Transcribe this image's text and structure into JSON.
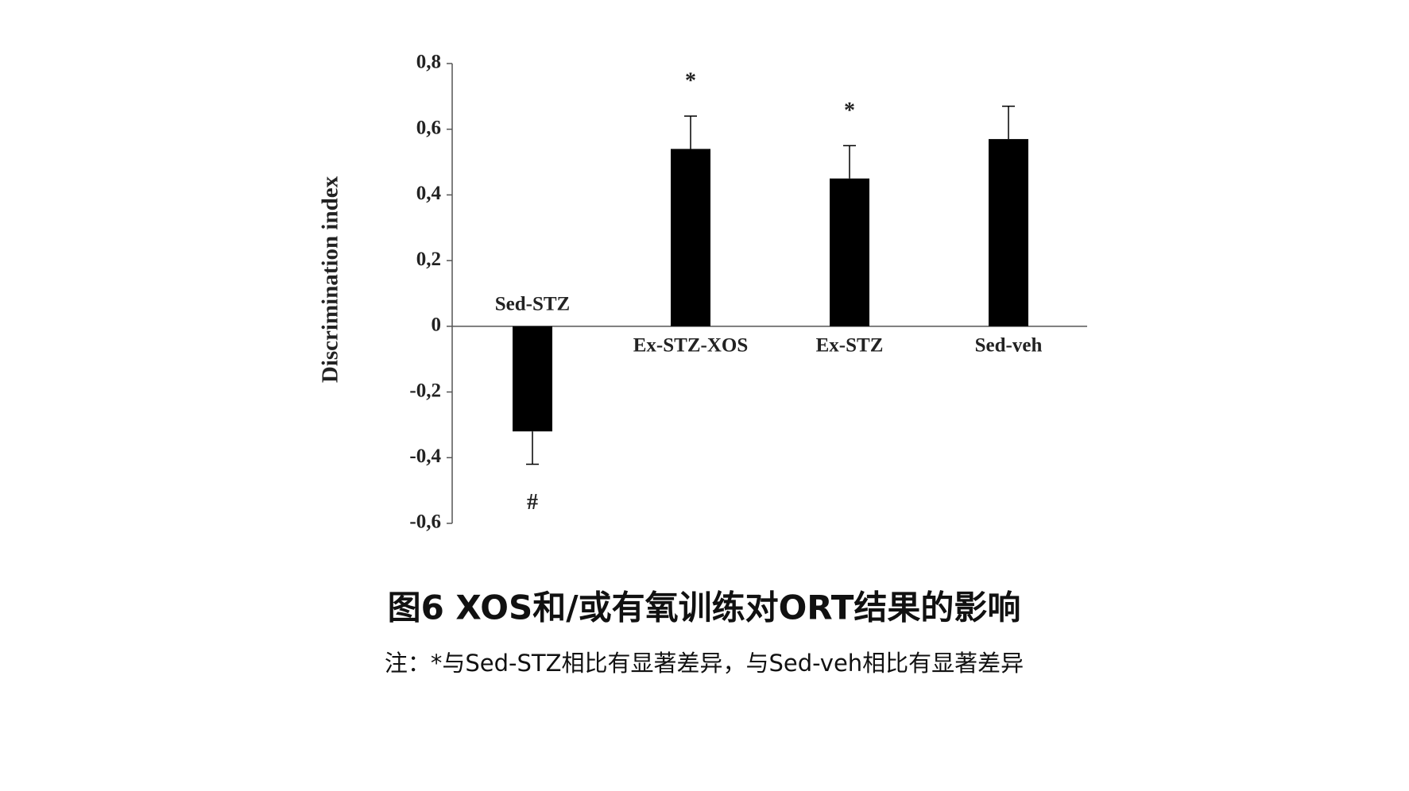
{
  "chart_data": {
    "type": "bar",
    "y_label": "Discrimination index",
    "categories": [
      "Sed-STZ",
      "Ex-STZ-XOS",
      "Ex-STZ",
      "Sed-veh"
    ],
    "values": [
      -0.32,
      0.54,
      0.45,
      0.57
    ],
    "errors": [
      0.1,
      0.1,
      0.1,
      0.1
    ],
    "significance_labels": [
      "#",
      "*",
      "*",
      null
    ],
    "color": "#000000",
    "ylim": [
      -0.6,
      0.8
    ],
    "yticks": [
      {
        "value": -0.6,
        "label": "-0,6"
      },
      {
        "value": -0.4,
        "label": "-0,4"
      },
      {
        "value": -0.2,
        "label": "-0,2"
      },
      0,
      {
        "value": 0.2,
        "label": "0,2"
      },
      {
        "value": 0.4,
        "label": "0,4"
      },
      {
        "value": 0.6,
        "label": "0,6"
      },
      {
        "value": 0.8,
        "label": "0,8"
      }
    ],
    "grid": false
  },
  "caption": {
    "title": "图6 XOS和/或有氧训练对ORT结果的影响",
    "note": "注：*与Sed-STZ相比有显著差异，与Sed-veh相比有显著差异"
  }
}
